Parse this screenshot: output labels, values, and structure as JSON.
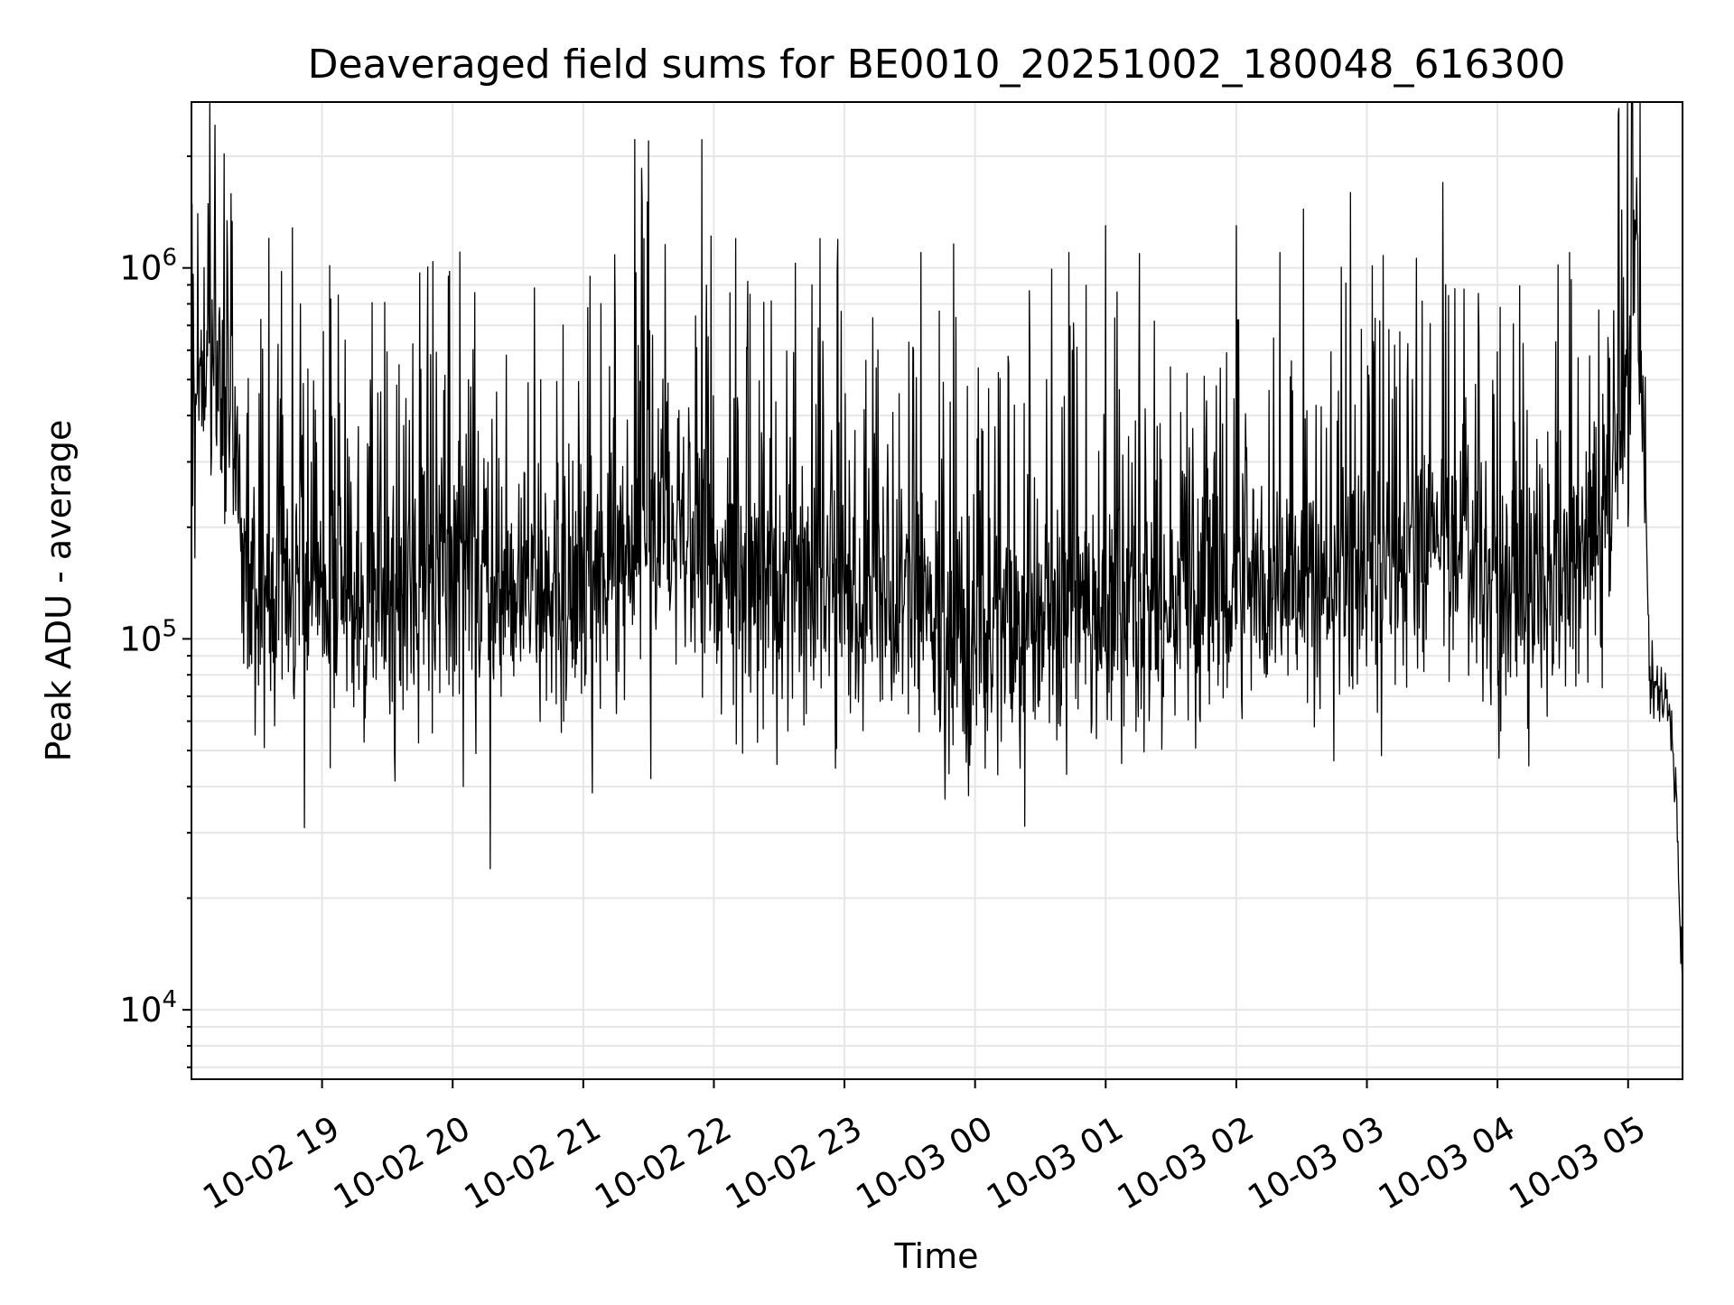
{
  "chart_data": {
    "type": "line",
    "title": "Deaveraged field sums for BE0010_20251002_180048_616300",
    "xlabel": "Time",
    "ylabel": "Peak ADU - average",
    "x_start": "2025-10-02 18:00",
    "x_end": "2025-10-03 05:25",
    "y_scale": "log",
    "ylim": [
      6500,
      2800000
    ],
    "grid": "on",
    "line_color": "#000000",
    "grid_color": "#e6e6e6",
    "x_ticks": [
      {
        "t": "2025-10-02 19:00",
        "label": "10-02 19"
      },
      {
        "t": "2025-10-02 20:00",
        "label": "10-02 20"
      },
      {
        "t": "2025-10-02 21:00",
        "label": "10-02 21"
      },
      {
        "t": "2025-10-02 22:00",
        "label": "10-02 22"
      },
      {
        "t": "2025-10-02 23:00",
        "label": "10-02 23"
      },
      {
        "t": "2025-10-03 00:00",
        "label": "10-03 00"
      },
      {
        "t": "2025-10-03 01:00",
        "label": "10-03 01"
      },
      {
        "t": "2025-10-03 02:00",
        "label": "10-03 02"
      },
      {
        "t": "2025-10-03 03:00",
        "label": "10-03 03"
      },
      {
        "t": "2025-10-03 04:00",
        "label": "10-03 04"
      },
      {
        "t": "2025-10-03 05:00",
        "label": "10-03 05"
      }
    ],
    "y_ticks": [
      {
        "value": 10000,
        "base": "10",
        "exp": "4"
      },
      {
        "value": 100000,
        "base": "10",
        "exp": "5"
      },
      {
        "value": 1000000,
        "base": "10",
        "exp": "6"
      }
    ],
    "series": [
      {
        "baseline_profile": [
          {
            "t": "2025-10-02 18:00",
            "value": 330000
          },
          {
            "t": "2025-10-02 18:10",
            "value": 600000
          },
          {
            "t": "2025-10-02 18:20",
            "value": 380000
          },
          {
            "t": "2025-10-02 18:25",
            "value": 140000
          },
          {
            "t": "2025-10-02 19:00",
            "value": 130000
          },
          {
            "t": "2025-10-02 20:00",
            "value": 135000
          },
          {
            "t": "2025-10-02 21:00",
            "value": 140000
          },
          {
            "t": "2025-10-02 21:40",
            "value": 185000
          },
          {
            "t": "2025-10-02 22:00",
            "value": 150000
          },
          {
            "t": "2025-10-02 23:00",
            "value": 130000
          },
          {
            "t": "2025-10-03 00:00",
            "value": 100000
          },
          {
            "t": "2025-10-03 01:00",
            "value": 115000
          },
          {
            "t": "2025-10-03 02:00",
            "value": 135000
          },
          {
            "t": "2025-10-03 03:00",
            "value": 150000
          },
          {
            "t": "2025-10-03 03:40",
            "value": 200000
          },
          {
            "t": "2025-10-03 04:00",
            "value": 120000
          },
          {
            "t": "2025-10-03 04:45",
            "value": 160000
          },
          {
            "t": "2025-10-03 05:00",
            "value": 450000
          },
          {
            "t": "2025-10-03 05:03",
            "value": 1300000
          },
          {
            "t": "2025-10-03 05:06",
            "value": 550000
          },
          {
            "t": "2025-10-03 05:10",
            "value": 80000
          },
          {
            "t": "2025-10-03 05:18",
            "value": 65000
          },
          {
            "t": "2025-10-03 05:22",
            "value": 40000
          },
          {
            "t": "2025-10-03 05:25",
            "value": 11000
          }
        ],
        "peaks": [
          {
            "t": "2025-10-02 18:03",
            "value": 1400000
          },
          {
            "t": "2025-10-02 18:08",
            "value": 850000
          },
          {
            "t": "2025-10-02 18:50",
            "value": 800000
          },
          {
            "t": "2025-10-02 18:52",
            "value": 31000
          },
          {
            "t": "2025-10-02 19:58",
            "value": 950000
          },
          {
            "t": "2025-10-02 20:05",
            "value": 40000
          },
          {
            "t": "2025-10-02 21:03",
            "value": 950000
          },
          {
            "t": "2025-10-02 21:28",
            "value": 1200000
          },
          {
            "t": "2025-10-02 21:30",
            "value": 2200000
          },
          {
            "t": "2025-10-02 21:31",
            "value": 42000
          },
          {
            "t": "2025-10-02 22:10",
            "value": 1200000
          },
          {
            "t": "2025-10-02 22:45",
            "value": 900000
          },
          {
            "t": "2025-10-02 23:35",
            "value": 1100000
          },
          {
            "t": "2025-10-03 00:43",
            "value": 1100000
          },
          {
            "t": "2025-10-03 01:00",
            "value": 1300000
          },
          {
            "t": "2025-10-03 02:00",
            "value": 1300000
          },
          {
            "t": "2025-10-03 02:20",
            "value": 1100000
          },
          {
            "t": "2025-10-03 03:35",
            "value": 1700000
          },
          {
            "t": "2025-10-03 04:33",
            "value": 1100000
          }
        ]
      }
    ]
  }
}
